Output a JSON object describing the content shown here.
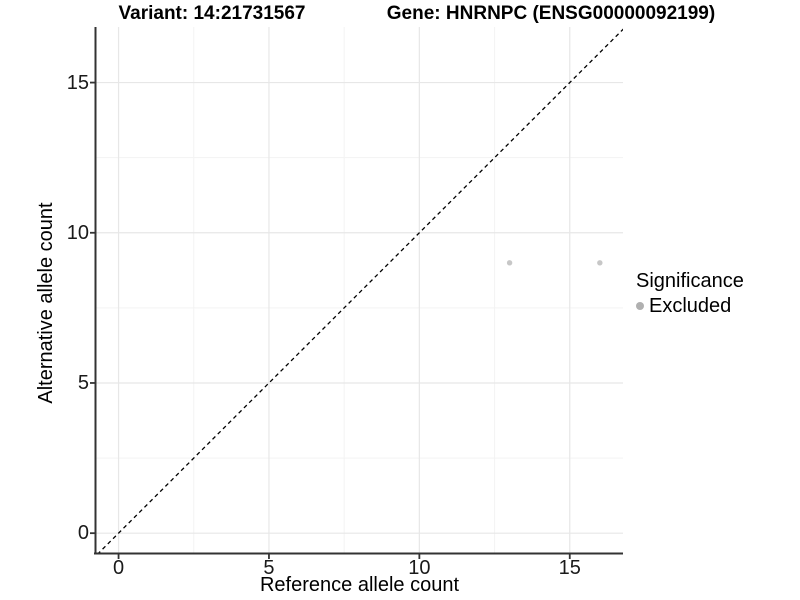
{
  "chart_data": {
    "type": "scatter",
    "title_left": "Variant: 14:21731567",
    "title_right": "Gene: HNRNPC (ENSG00000092199)",
    "xlabel": "Reference allele count",
    "ylabel": "Alternative allele count",
    "xlim": [
      -0.75,
      16.77
    ],
    "ylim": [
      -0.66,
      16.85
    ],
    "x_ticks": [
      0,
      5,
      10,
      15
    ],
    "y_ticks": [
      0,
      5,
      10,
      15
    ],
    "minor_ticks": [
      2.5,
      7.5,
      12.5
    ],
    "grid": true,
    "identity_line": {
      "slope": 1,
      "intercept": 0,
      "style": "dashed",
      "color": "#000000"
    },
    "series": [
      {
        "name": "Excluded",
        "points": [
          {
            "x": 13,
            "y": 9
          },
          {
            "x": 16,
            "y": 9
          }
        ]
      }
    ],
    "point_color": "#c7c7c7",
    "legend": {
      "position": "right",
      "title": "Significance",
      "items": [
        {
          "label": "Excluded",
          "color": "#b0b0b0"
        }
      ]
    }
  }
}
